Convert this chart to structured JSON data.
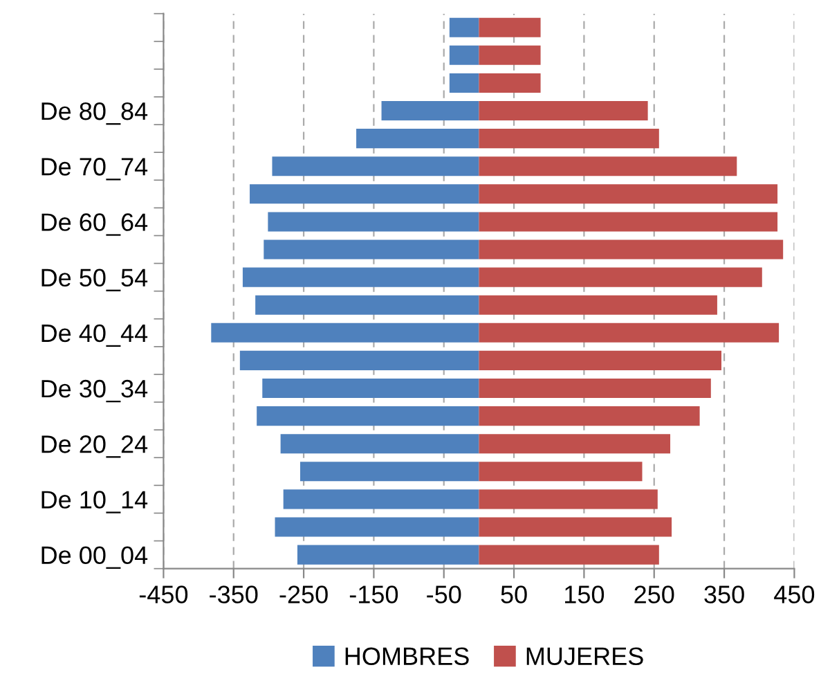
{
  "chart_data": {
    "type": "bar",
    "orientation": "horizontal",
    "categories": [
      null,
      null,
      null,
      "De 80_84",
      null,
      "De 70_74",
      null,
      "De 60_64",
      null,
      "De 50_54",
      null,
      "De 40_44",
      null,
      "De 30_34",
      null,
      "De 20_24",
      null,
      "De 10_14",
      null,
      "De 00_04"
    ],
    "series": [
      {
        "name": "HOMBRES",
        "color": "#4f81bd",
        "values": [
          -42,
          -42,
          -42,
          -139,
          -175,
          -295,
          -327,
          -301,
          -307,
          -337,
          -319,
          -382,
          -341,
          -309,
          -317,
          -283,
          -255,
          -279,
          -291,
          -259
        ]
      },
      {
        "name": "MUJERES",
        "color": "#c0504d",
        "values": [
          88,
          88,
          88,
          241,
          257,
          368,
          426,
          426,
          434,
          404,
          340,
          428,
          346,
          331,
          315,
          273,
          233,
          255,
          275,
          257
        ]
      }
    ],
    "stacked": true,
    "xlim": [
      -450,
      450
    ],
    "xticks": [
      -450,
      -350,
      -250,
      -150,
      -50,
      50,
      150,
      250,
      350,
      450
    ],
    "grid": "x",
    "legend": "bottom"
  }
}
